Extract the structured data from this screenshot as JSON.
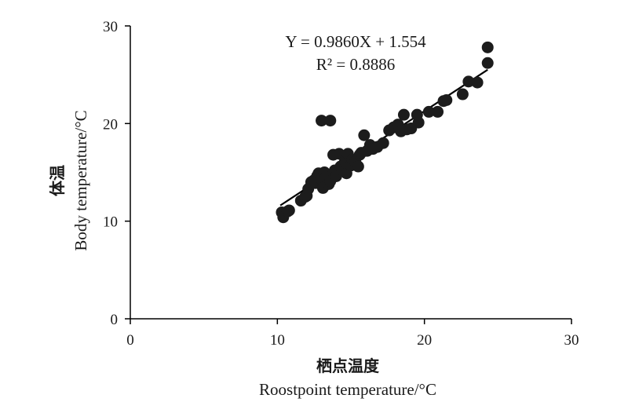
{
  "chart_data": {
    "type": "scatter",
    "xlim": [
      0,
      30
    ],
    "ylim": [
      0,
      30
    ],
    "x_ticks": [
      "0",
      "10",
      "20",
      "30"
    ],
    "y_ticks": [
      "0",
      "10",
      "20",
      "30"
    ],
    "xlabel_cn": "栖点温度",
    "xlabel_en": "Roostpoint temperature/°C",
    "ylabel_cn": "体温",
    "ylabel_en": "Body temperature/°C",
    "equation": "Y = 0.9860X + 1.554",
    "r_squared_label": "R² = 0.8886",
    "regression": {
      "slope": 0.986,
      "intercept": 1.554,
      "x_range": [
        10.2,
        24.3
      ]
    },
    "grid": false,
    "points": [
      [
        10.3,
        10.9
      ],
      [
        10.4,
        10.4
      ],
      [
        10.7,
        11.0
      ],
      [
        10.8,
        11.1
      ],
      [
        11.6,
        12.1
      ],
      [
        11.9,
        12.5
      ],
      [
        12.0,
        12.6
      ],
      [
        12.1,
        13.3
      ],
      [
        12.3,
        14.0
      ],
      [
        12.5,
        14.2
      ],
      [
        12.6,
        13.9
      ],
      [
        12.7,
        14.6
      ],
      [
        12.8,
        14.9
      ],
      [
        13.0,
        14.3
      ],
      [
        13.1,
        13.4
      ],
      [
        13.2,
        15.0
      ],
      [
        13.3,
        14.5
      ],
      [
        13.5,
        13.8
      ],
      [
        13.6,
        14.1
      ],
      [
        13.8,
        16.8
      ],
      [
        13.9,
        15.2
      ],
      [
        14.0,
        14.6
      ],
      [
        14.2,
        16.9
      ],
      [
        14.3,
        15.6
      ],
      [
        14.5,
        15.1
      ],
      [
        14.6,
        16.2
      ],
      [
        14.7,
        14.9
      ],
      [
        14.8,
        16.9
      ],
      [
        15.0,
        15.7
      ],
      [
        15.1,
        16.3
      ],
      [
        15.3,
        16.1
      ],
      [
        15.5,
        15.6
      ],
      [
        15.6,
        16.8
      ],
      [
        15.7,
        17.0
      ],
      [
        15.9,
        18.8
      ],
      [
        16.1,
        17.2
      ],
      [
        16.3,
        17.8
      ],
      [
        16.5,
        17.4
      ],
      [
        16.8,
        17.6
      ],
      [
        17.2,
        18.0
      ],
      [
        17.6,
        19.3
      ],
      [
        17.9,
        19.6
      ],
      [
        18.2,
        19.9
      ],
      [
        18.4,
        19.2
      ],
      [
        18.6,
        20.9
      ],
      [
        18.8,
        19.4
      ],
      [
        19.1,
        19.5
      ],
      [
        19.5,
        20.9
      ],
      [
        19.6,
        20.1
      ],
      [
        20.3,
        21.2
      ],
      [
        20.9,
        21.2
      ],
      [
        21.3,
        22.3
      ],
      [
        21.5,
        22.4
      ],
      [
        22.6,
        23.0
      ],
      [
        23.0,
        24.3
      ],
      [
        23.6,
        24.2
      ],
      [
        24.3,
        26.2
      ],
      [
        24.3,
        27.8
      ],
      [
        13.0,
        20.3
      ],
      [
        13.6,
        20.3
      ]
    ]
  }
}
